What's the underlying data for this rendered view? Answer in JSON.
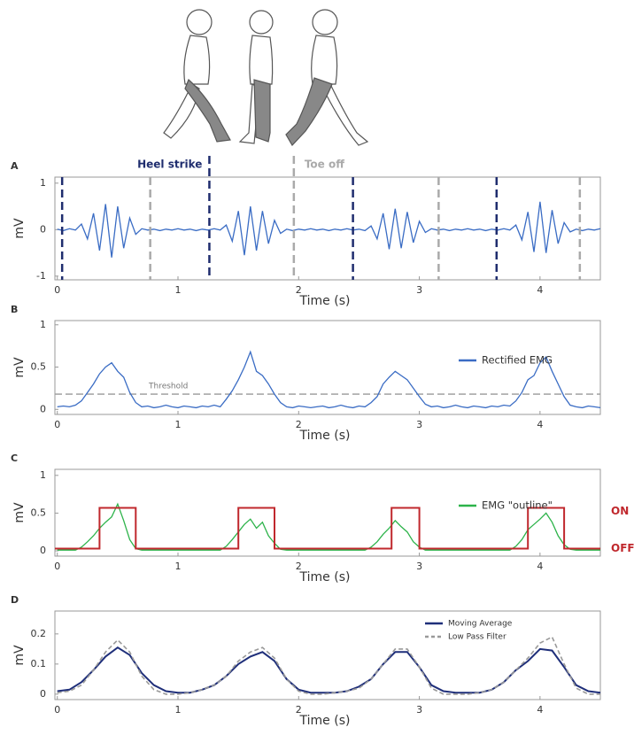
{
  "chart_data": [
    {
      "type": "line",
      "panel_label": "A",
      "xlabel": "Time (s)",
      "ylabel": "mV",
      "xlim": [
        -0.02,
        4.5
      ],
      "xticks": [
        0,
        1,
        2,
        3,
        4
      ],
      "ylim": [
        -1.08,
        1.13
      ],
      "yticks": [
        -1,
        0,
        1
      ],
      "heel_strike": {
        "label": "Heel strike",
        "color": "#1f2d6e",
        "x": [
          0.04,
          1.26,
          2.45,
          3.64
        ]
      },
      "toe_off": {
        "label": "Toe off",
        "color": "#aaaaaa",
        "x": [
          0.77,
          1.96,
          3.16,
          4.33
        ]
      },
      "x": [
        0,
        0.05,
        0.1,
        0.15,
        0.2,
        0.25,
        0.3,
        0.35,
        0.4,
        0.45,
        0.5,
        0.55,
        0.6,
        0.65,
        0.7,
        0.75,
        0.8,
        0.85,
        0.9,
        0.95,
        1,
        1.05,
        1.1,
        1.15,
        1.2,
        1.25,
        1.3,
        1.35,
        1.4,
        1.45,
        1.5,
        1.55,
        1.6,
        1.65,
        1.7,
        1.75,
        1.8,
        1.85,
        1.9,
        1.95,
        2,
        2.05,
        2.1,
        2.15,
        2.2,
        2.25,
        2.3,
        2.35,
        2.4,
        2.45,
        2.5,
        2.55,
        2.6,
        2.65,
        2.7,
        2.75,
        2.8,
        2.85,
        2.9,
        2.95,
        3,
        3.05,
        3.1,
        3.15,
        3.2,
        3.25,
        3.3,
        3.35,
        3.4,
        3.45,
        3.5,
        3.55,
        3.6,
        3.65,
        3.7,
        3.75,
        3.8,
        3.85,
        3.9,
        3.95,
        4,
        4.05,
        4.1,
        4.15,
        4.2,
        4.25,
        4.3,
        4.35,
        4.4,
        4.45,
        4.5
      ],
      "series": [
        {
          "color": "#3a6cc4",
          "values": [
            0.01,
            -0.02,
            0.02,
            -0.01,
            0.12,
            -0.2,
            0.35,
            -0.45,
            0.55,
            -0.6,
            0.5,
            -0.4,
            0.25,
            -0.1,
            0.02,
            -0.01,
            0.01,
            -0.02,
            0.01,
            -0.01,
            0.02,
            -0.01,
            0.01,
            -0.02,
            0.01,
            -0.01,
            0.02,
            -0.01,
            0.1,
            -0.25,
            0.4,
            -0.55,
            0.5,
            -0.45,
            0.4,
            -0.3,
            0.2,
            -0.08,
            0.01,
            -0.02,
            0.01,
            -0.01,
            0.02,
            -0.01,
            0.01,
            -0.02,
            0.01,
            -0.01,
            0.02,
            -0.01,
            0.01,
            -0.02,
            0.08,
            -0.2,
            0.35,
            -0.42,
            0.45,
            -0.4,
            0.38,
            -0.28,
            0.18,
            -0.06,
            0.02,
            -0.01,
            0.01,
            -0.02,
            0.01,
            -0.01,
            0.02,
            -0.01,
            0.01,
            -0.02,
            0.01,
            -0.01,
            0.02,
            -0.01,
            0.1,
            -0.22,
            0.38,
            -0.48,
            0.6,
            -0.5,
            0.42,
            -0.3,
            0.15,
            -0.05,
            0.01,
            -0.02,
            0.01,
            -0.01,
            0.02
          ]
        }
      ]
    },
    {
      "type": "line",
      "panel_label": "B",
      "xlabel": "Time (s)",
      "ylabel": "mV",
      "xlim": [
        -0.02,
        4.5
      ],
      "xticks": [
        0,
        1,
        2,
        3,
        4
      ],
      "ylim": [
        -0.06,
        1.05
      ],
      "yticks": [
        0,
        0.5,
        1
      ],
      "legend": "upper right",
      "threshold": {
        "label": "Threshold",
        "value": 0.18,
        "color": "#999999"
      },
      "x": [
        0,
        0.05,
        0.1,
        0.15,
        0.2,
        0.25,
        0.3,
        0.35,
        0.4,
        0.45,
        0.5,
        0.55,
        0.6,
        0.65,
        0.7,
        0.75,
        0.8,
        0.85,
        0.9,
        0.95,
        1,
        1.05,
        1.1,
        1.15,
        1.2,
        1.25,
        1.3,
        1.35,
        1.4,
        1.45,
        1.5,
        1.55,
        1.6,
        1.65,
        1.7,
        1.75,
        1.8,
        1.85,
        1.9,
        1.95,
        2,
        2.05,
        2.1,
        2.15,
        2.2,
        2.25,
        2.3,
        2.35,
        2.4,
        2.45,
        2.5,
        2.55,
        2.6,
        2.65,
        2.7,
        2.75,
        2.8,
        2.85,
        2.9,
        2.95,
        3,
        3.05,
        3.1,
        3.15,
        3.2,
        3.25,
        3.3,
        3.35,
        3.4,
        3.45,
        3.5,
        3.55,
        3.6,
        3.65,
        3.7,
        3.75,
        3.8,
        3.85,
        3.9,
        3.95,
        4,
        4.05,
        4.1,
        4.15,
        4.2,
        4.25,
        4.3,
        4.35,
        4.4,
        4.45,
        4.5
      ],
      "series": [
        {
          "name": "Rectified EMG",
          "color": "#3a6cc4",
          "values": [
            0.03,
            0.04,
            0.03,
            0.05,
            0.1,
            0.2,
            0.3,
            0.42,
            0.5,
            0.55,
            0.45,
            0.38,
            0.2,
            0.08,
            0.03,
            0.04,
            0.02,
            0.03,
            0.05,
            0.03,
            0.02,
            0.04,
            0.03,
            0.02,
            0.04,
            0.03,
            0.05,
            0.03,
            0.12,
            0.22,
            0.35,
            0.5,
            0.68,
            0.45,
            0.4,
            0.3,
            0.18,
            0.08,
            0.03,
            0.02,
            0.04,
            0.03,
            0.02,
            0.03,
            0.04,
            0.02,
            0.03,
            0.05,
            0.03,
            0.02,
            0.04,
            0.03,
            0.08,
            0.15,
            0.3,
            0.38,
            0.45,
            0.4,
            0.35,
            0.25,
            0.15,
            0.06,
            0.03,
            0.04,
            0.02,
            0.03,
            0.05,
            0.03,
            0.02,
            0.04,
            0.03,
            0.02,
            0.04,
            0.03,
            0.05,
            0.04,
            0.1,
            0.2,
            0.35,
            0.4,
            0.55,
            0.62,
            0.45,
            0.3,
            0.15,
            0.05,
            0.03,
            0.02,
            0.04,
            0.03,
            0.02
          ]
        }
      ]
    },
    {
      "type": "line",
      "panel_label": "C",
      "xlabel": "Time (s)",
      "ylabel": "mV",
      "xlim": [
        -0.02,
        4.5
      ],
      "xticks": [
        0,
        1,
        2,
        3,
        4
      ],
      "ylim": [
        -0.07,
        1.08
      ],
      "yticks": [
        0,
        0.5,
        1
      ],
      "legend": "upper right",
      "on_label": "ON",
      "off_label": "OFF",
      "step": {
        "color": "#c0282d",
        "x": [
          -0.02,
          0.35,
          0.35,
          0.65,
          0.65,
          1.5,
          1.5,
          1.8,
          1.8,
          2.77,
          2.77,
          3.0,
          3.0,
          3.9,
          3.9,
          4.2,
          4.2,
          4.5
        ],
        "values": [
          0.03,
          0.03,
          0.57,
          0.57,
          0.03,
          0.03,
          0.57,
          0.57,
          0.03,
          0.03,
          0.57,
          0.57,
          0.03,
          0.03,
          0.57,
          0.57,
          0.03,
          0.03
        ]
      },
      "x": [
        0,
        0.05,
        0.1,
        0.15,
        0.2,
        0.25,
        0.3,
        0.35,
        0.4,
        0.45,
        0.5,
        0.55,
        0.6,
        0.65,
        0.7,
        0.75,
        0.8,
        0.85,
        0.9,
        0.95,
        1,
        1.05,
        1.1,
        1.15,
        1.2,
        1.25,
        1.3,
        1.35,
        1.4,
        1.45,
        1.5,
        1.55,
        1.6,
        1.65,
        1.7,
        1.75,
        1.8,
        1.85,
        1.9,
        1.95,
        2,
        2.05,
        2.1,
        2.15,
        2.2,
        2.25,
        2.3,
        2.35,
        2.4,
        2.45,
        2.5,
        2.55,
        2.6,
        2.65,
        2.7,
        2.75,
        2.8,
        2.85,
        2.9,
        2.95,
        3,
        3.05,
        3.1,
        3.15,
        3.2,
        3.25,
        3.3,
        3.35,
        3.4,
        3.45,
        3.5,
        3.55,
        3.6,
        3.65,
        3.7,
        3.75,
        3.8,
        3.85,
        3.9,
        3.95,
        4,
        4.05,
        4.1,
        4.15,
        4.2,
        4.25,
        4.3,
        4.35,
        4.4,
        4.45,
        4.5
      ],
      "series": [
        {
          "name": "EMG \"outline\"",
          "color": "#2db34a",
          "values": [
            0.01,
            0.01,
            0.01,
            0.01,
            0.05,
            0.12,
            0.2,
            0.3,
            0.38,
            0.45,
            0.62,
            0.4,
            0.15,
            0.03,
            0.01,
            0.01,
            0.01,
            0.01,
            0.01,
            0.01,
            0.01,
            0.01,
            0.01,
            0.01,
            0.01,
            0.01,
            0.01,
            0.01,
            0.06,
            0.15,
            0.25,
            0.35,
            0.42,
            0.3,
            0.38,
            0.2,
            0.1,
            0.02,
            0.01,
            0.01,
            0.01,
            0.01,
            0.01,
            0.01,
            0.01,
            0.01,
            0.01,
            0.01,
            0.01,
            0.01,
            0.01,
            0.01,
            0.05,
            0.12,
            0.22,
            0.3,
            0.4,
            0.32,
            0.25,
            0.12,
            0.05,
            0.01,
            0.01,
            0.01,
            0.01,
            0.01,
            0.01,
            0.01,
            0.01,
            0.01,
            0.01,
            0.01,
            0.01,
            0.01,
            0.01,
            0.01,
            0.06,
            0.15,
            0.28,
            0.35,
            0.42,
            0.5,
            0.38,
            0.2,
            0.08,
            0.02,
            0.01,
            0.01,
            0.01,
            0.01,
            0.01
          ]
        }
      ]
    },
    {
      "type": "line",
      "panel_label": "D",
      "xlabel": "Time (s)",
      "ylabel": "mV",
      "xlim": [
        -0.02,
        4.5
      ],
      "xticks": [
        0,
        1,
        2,
        3,
        4
      ],
      "ylim": [
        -0.018,
        0.276
      ],
      "yticks": [
        0,
        0.1,
        0.2
      ],
      "legend": "upper right",
      "x": [
        0,
        0.1,
        0.2,
        0.3,
        0.4,
        0.5,
        0.6,
        0.7,
        0.8,
        0.9,
        1,
        1.1,
        1.2,
        1.3,
        1.4,
        1.5,
        1.6,
        1.7,
        1.8,
        1.9,
        2,
        2.1,
        2.2,
        2.3,
        2.4,
        2.5,
        2.6,
        2.7,
        2.8,
        2.9,
        3,
        3.1,
        3.2,
        3.3,
        3.4,
        3.5,
        3.6,
        3.7,
        3.8,
        3.9,
        4,
        4.1,
        4.2,
        4.3,
        4.4,
        4.5
      ],
      "series": [
        {
          "name": "Moving Average",
          "color": "#1f2f7a",
          "values": [
            0.01,
            0.015,
            0.04,
            0.08,
            0.125,
            0.155,
            0.13,
            0.07,
            0.03,
            0.01,
            0.005,
            0.005,
            0.015,
            0.03,
            0.06,
            0.1,
            0.125,
            0.14,
            0.11,
            0.05,
            0.015,
            0.005,
            0.005,
            0.005,
            0.01,
            0.025,
            0.05,
            0.1,
            0.14,
            0.14,
            0.09,
            0.03,
            0.01,
            0.005,
            0.005,
            0.005,
            0.015,
            0.04,
            0.08,
            0.11,
            0.15,
            0.145,
            0.09,
            0.03,
            0.01,
            0.005
          ]
        },
        {
          "name": "Low Pass Filter",
          "color": "#999999",
          "dashed": true,
          "values": [
            0.005,
            0.01,
            0.03,
            0.08,
            0.14,
            0.18,
            0.14,
            0.06,
            0.015,
            0.0,
            0.0,
            0.005,
            0.015,
            0.03,
            0.06,
            0.11,
            0.14,
            0.155,
            0.12,
            0.05,
            0.01,
            0.0,
            0.0,
            0.005,
            0.01,
            0.02,
            0.05,
            0.1,
            0.15,
            0.15,
            0.09,
            0.02,
            0.0,
            0.0,
            0.0,
            0.005,
            0.015,
            0.04,
            0.08,
            0.12,
            0.17,
            0.19,
            0.1,
            0.02,
            0.0,
            0.0
          ]
        }
      ]
    }
  ]
}
